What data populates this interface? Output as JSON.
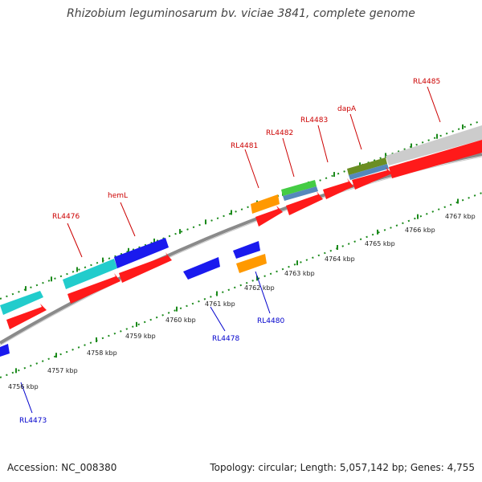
{
  "title": "Rhizobium leguminosarum bv. viciae 3841, complete genome",
  "footer": {
    "accession": "Accession: NC_008380",
    "topology": "Topology: circular; Length: 5,057,142 bp; Genes: 4,755"
  },
  "colors": {
    "backbone": "#8a8a8a",
    "forward_label": "#cc0000",
    "reverse_label": "#0000cc",
    "tick": "#1b8a1b",
    "cds": "#ff1a1a",
    "gene_cyan": "#22cccc",
    "gene_blue": "#1a1aee",
    "gene_orange": "#ff9900",
    "gene_green": "#44cc44",
    "gene_steel": "#5588bb",
    "gene_olive": "#6b8e23",
    "gene_grey": "#cccccc"
  },
  "scale_labels": [
    "4756 kbp",
    "4757 kbp",
    "4758 kbp",
    "4759 kbp",
    "4760 kbp",
    "4761 kbp",
    "4762 kbp",
    "4763 kbp",
    "4764 kbp",
    "4765 kbp",
    "4766 kbp",
    "4767 kbp"
  ],
  "forward_labels": [
    "RL4476",
    "hemL",
    "RL4481",
    "RL4482",
    "RL4483",
    "dapA",
    "RL4485"
  ],
  "reverse_labels": [
    "RL4473",
    "RL4478",
    "RL4480"
  ]
}
